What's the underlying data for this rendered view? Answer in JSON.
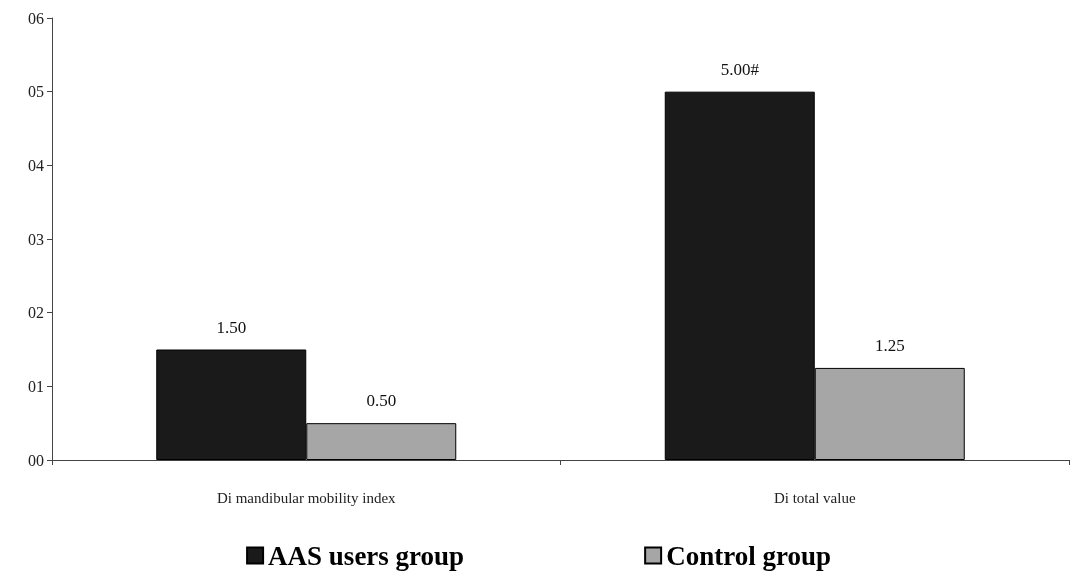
{
  "chart_data": {
    "type": "bar",
    "categories": [
      "Di mandibular mobility index",
      "Di total value"
    ],
    "series": [
      {
        "name": "AAS users group",
        "color": "#1a1a1a",
        "values": [
          1.5,
          5
        ],
        "value_labels": [
          "1.50",
          "5.00#"
        ]
      },
      {
        "name": "Control group",
        "color": "#a6a6a6",
        "values": [
          0.5,
          1.25
        ],
        "value_labels": [
          "0.50",
          "1.25"
        ]
      }
    ],
    "ylim": [
      0,
      6
    ],
    "yticks": [
      {
        "value": 0,
        "label": "00"
      },
      {
        "value": 1,
        "label": "01"
      },
      {
        "value": 2,
        "label": "02"
      },
      {
        "value": 3,
        "label": "03"
      },
      {
        "value": 4,
        "label": "04"
      },
      {
        "value": 5,
        "label": "05"
      },
      {
        "value": 6,
        "label": "06"
      }
    ],
    "grid": false,
    "legend": "bottom"
  }
}
